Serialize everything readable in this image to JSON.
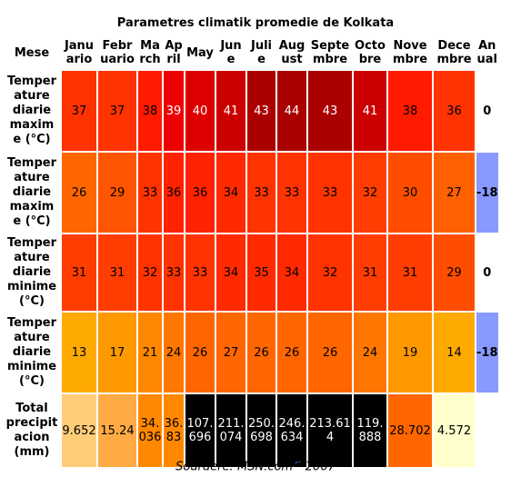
{
  "caption": "Parametres climatik promedie de Kolkata",
  "header": {
    "corner": "Mese",
    "months": [
      "Janu ario",
      "Febr uario",
      "Ma rch",
      "Ap ril",
      "May",
      "Jun e",
      "Juli e",
      "Aug ust",
      "Septe mbre",
      "Octo bre",
      "Nove mbre",
      "Dece mbre"
    ],
    "annual": "An ual"
  },
  "rows": [
    {
      "label": "Temper ature diarie maxim e (°C)",
      "values": [
        "37",
        "37",
        "38",
        "39",
        "40",
        "41",
        "43",
        "44",
        "43",
        "41",
        "38",
        "36"
      ],
      "colors": [
        "#ff3300",
        "#ff3300",
        "#ff1a00",
        "#ee0000",
        "#dd0000",
        "#cc0000",
        "#aa0000",
        "#aa0000",
        "#aa0000",
        "#cc0000",
        "#ff1a00",
        "#ff3300"
      ],
      "annual": "0",
      "annual_color": "#ffffff"
    },
    {
      "label": "Temper ature diarie maxim e (°C)",
      "values": [
        "26",
        "29",
        "33",
        "36",
        "36",
        "34",
        "33",
        "33",
        "33",
        "32",
        "30",
        "27"
      ],
      "colors": [
        "#ff6600",
        "#ff5500",
        "#ff3300",
        "#ff2200",
        "#ff2200",
        "#ff2a00",
        "#ff3300",
        "#ff3300",
        "#ff3300",
        "#ff3d00",
        "#ff4d00",
        "#ff6000"
      ],
      "annual": "-18",
      "annual_color": "#8899ff"
    },
    {
      "label": "Temper ature diarie minime (°C)",
      "values": [
        "31",
        "31",
        "32",
        "33",
        "33",
        "34",
        "35",
        "34",
        "32",
        "31",
        "31",
        "29"
      ],
      "colors": [
        "#ff3d00",
        "#ff3d00",
        "#ff3300",
        "#ff3300",
        "#ff3300",
        "#ff2a00",
        "#ff2a00",
        "#ff2a00",
        "#ff3300",
        "#ff3d00",
        "#ff3d00",
        "#ff4d00"
      ],
      "annual": "0",
      "annual_color": "#ffffff"
    },
    {
      "label": "Temper ature diarie minime (°C)",
      "values": [
        "13",
        "17",
        "21",
        "24",
        "26",
        "27",
        "26",
        "26",
        "26",
        "24",
        "19",
        "14"
      ],
      "colors": [
        "#ffaa00",
        "#ff9900",
        "#ff8800",
        "#ff7700",
        "#ff6600",
        "#ff6600",
        "#ff6600",
        "#ff6600",
        "#ff6600",
        "#ff7700",
        "#ff9900",
        "#ffaa00"
      ],
      "annual": "-18",
      "annual_color": "#8899ff"
    },
    {
      "label": "Total precipit acion (mm)",
      "values": [
        "9.652",
        "15.24",
        "34. 036",
        "36. 83",
        "107. 696",
        "211. 074",
        "250. 698",
        "246. 634",
        "213.61 4",
        "119. 888",
        "28.702",
        "4.572"
      ],
      "colors": [
        "#ffcc77",
        "#ffaa44",
        "#ff8800",
        "#ff8800",
        "#000000",
        "#000000",
        "#000000",
        "#000000",
        "#000000",
        "#000000",
        "#ff6600",
        "#ffffcc"
      ],
      "annual": "",
      "annual_color": "#ffffff"
    }
  ],
  "source": {
    "text": "Sourdere: MSN.com",
    "ext_icon": "external-link-icon",
    "ext_glyph": "⌐",
    "year": "2007"
  }
}
